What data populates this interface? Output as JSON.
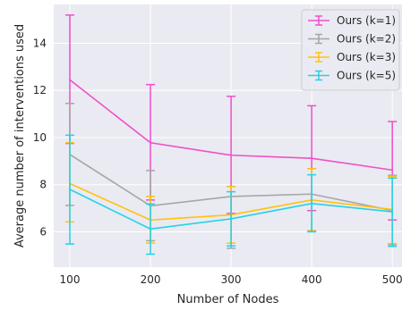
{
  "chart_data": {
    "type": "line",
    "xlabel": "Number of Nodes",
    "ylabel": "Average number of interventions used",
    "x": [
      100,
      200,
      300,
      400,
      500
    ],
    "x_ticks": [
      100,
      200,
      300,
      400,
      500
    ],
    "y_ticks": [
      6,
      8,
      10,
      12,
      14
    ],
    "xlim": [
      80,
      512
    ],
    "ylim": [
      4.5,
      15.65
    ],
    "grid": true,
    "legend_position": "top-right",
    "colors": {
      "background": "#eaeaf2",
      "grid": "#ffffff"
    },
    "series": [
      {
        "name": "Ours (k=1)",
        "color": "#f04fc8",
        "values": [
          12.45,
          9.78,
          9.25,
          9.12,
          8.62
        ],
        "err_low": [
          9.75,
          7.35,
          6.78,
          6.9,
          6.5
        ],
        "err_high": [
          15.2,
          12.25,
          11.75,
          11.35,
          10.68
        ]
      },
      {
        "name": "Ours (k=2)",
        "color": "#a6a6a6",
        "values": [
          9.28,
          7.1,
          7.5,
          7.6,
          6.9
        ],
        "err_low": [
          7.12,
          5.62,
          5.3,
          6.05,
          5.45
        ],
        "err_high": [
          11.45,
          8.6,
          7.92,
          8.68,
          8.4
        ]
      },
      {
        "name": "Ours (k=3)",
        "color": "#ffc20e",
        "values": [
          8.05,
          6.5,
          6.72,
          7.35,
          6.95
        ],
        "err_low": [
          6.42,
          5.52,
          5.52,
          6.05,
          5.5
        ],
        "err_high": [
          9.78,
          7.5,
          7.92,
          8.68,
          8.35
        ]
      },
      {
        "name": "Ours (k=5)",
        "color": "#21d3e8",
        "values": [
          7.8,
          6.12,
          6.55,
          7.2,
          6.85
        ],
        "err_low": [
          5.48,
          5.05,
          5.4,
          6.0,
          5.38
        ],
        "err_high": [
          10.1,
          7.18,
          7.7,
          8.42,
          8.28
        ]
      }
    ]
  }
}
